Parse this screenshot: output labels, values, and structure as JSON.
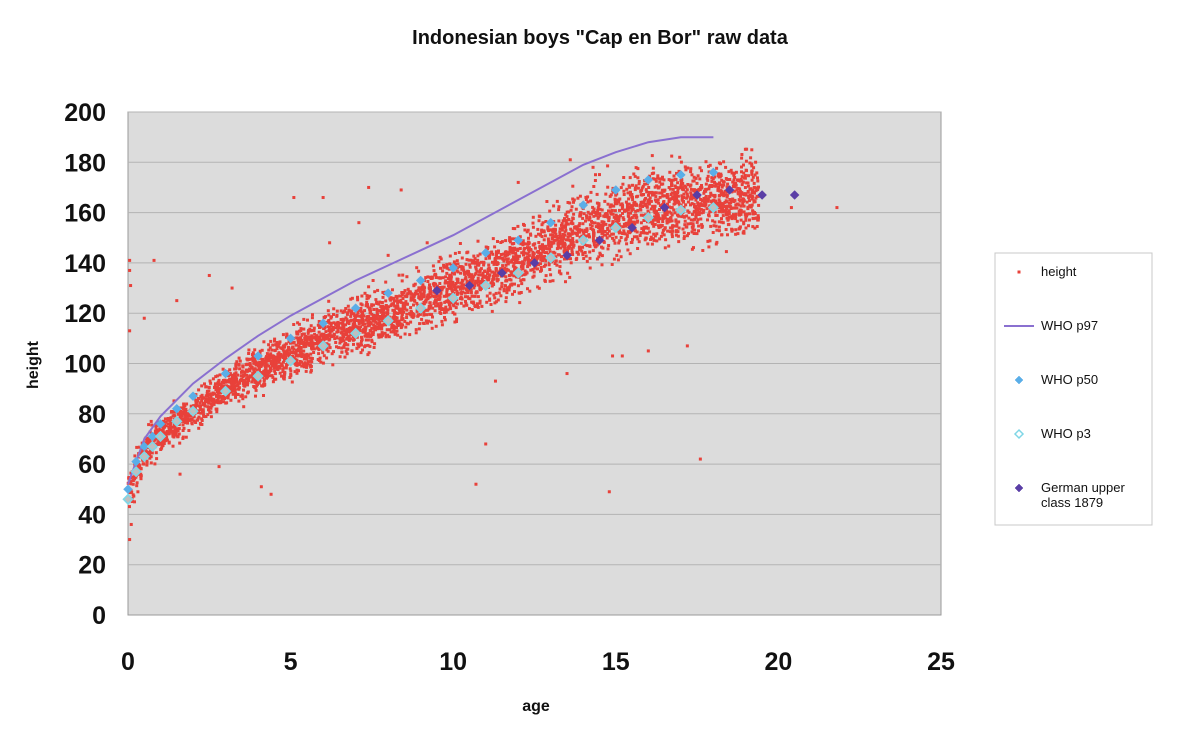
{
  "chart_data": {
    "type": "scatter",
    "title": "Indonesian boys \"Cap en Bor\" raw data",
    "xlabel": "age",
    "ylabel": "height",
    "xlim": [
      0,
      25
    ],
    "ylim": [
      0,
      200
    ],
    "x_ticks": [
      "0",
      "5",
      "10",
      "15",
      "20",
      "25"
    ],
    "y_ticks": [
      "0",
      "20",
      "40",
      "60",
      "80",
      "100",
      "120",
      "140",
      "160",
      "180",
      "200"
    ],
    "grid": true,
    "legend_placement": "right",
    "plot_background": "#dcdcdc",
    "series": [
      {
        "name": "height",
        "kind": "scatter-dense",
        "color": "#e8413a",
        "marker": "dot",
        "trend": [
          [
            0.0,
            50
          ],
          [
            0.5,
            64
          ],
          [
            1,
            71
          ],
          [
            2,
            81
          ],
          [
            3,
            90
          ],
          [
            4,
            97
          ],
          [
            5,
            104
          ],
          [
            6,
            110
          ],
          [
            7,
            115
          ],
          [
            8,
            120
          ],
          [
            9,
            125
          ],
          [
            10,
            130
          ],
          [
            11,
            135
          ],
          [
            12,
            141
          ],
          [
            13,
            147
          ],
          [
            14,
            153
          ],
          [
            15,
            158
          ],
          [
            16,
            162
          ],
          [
            17,
            164
          ],
          [
            18,
            165
          ],
          [
            19,
            166
          ]
        ],
        "points": [
          [
            0.05,
            141
          ],
          [
            0.05,
            137
          ],
          [
            0.08,
            131
          ],
          [
            0.05,
            113
          ],
          [
            0.2,
            45
          ],
          [
            0.1,
            36
          ],
          [
            0.05,
            30
          ],
          [
            0.5,
            118
          ],
          [
            0.8,
            141
          ],
          [
            1.5,
            125
          ],
          [
            2.5,
            135
          ],
          [
            3.2,
            130
          ],
          [
            4.4,
            48
          ],
          [
            4.1,
            51
          ],
          [
            5.1,
            166
          ],
          [
            6.0,
            166
          ],
          [
            7.4,
            170
          ],
          [
            8.0,
            143
          ],
          [
            8.4,
            169
          ],
          [
            10.7,
            52
          ],
          [
            11.0,
            68
          ],
          [
            11.3,
            93
          ],
          [
            14.8,
            49
          ],
          [
            14.9,
            103
          ],
          [
            15.2,
            103
          ],
          [
            16.0,
            105
          ],
          [
            17.2,
            107
          ],
          [
            17.6,
            62
          ],
          [
            21.8,
            162
          ],
          [
            13.6,
            181
          ],
          [
            14.3,
            178
          ],
          [
            12.0,
            172
          ],
          [
            20.4,
            162
          ],
          [
            19.0,
            158
          ],
          [
            9.2,
            148
          ],
          [
            7.1,
            156
          ],
          [
            6.2,
            148
          ],
          [
            13.5,
            96
          ],
          [
            2.8,
            59
          ],
          [
            1.6,
            56
          ]
        ]
      },
      {
        "name": "WHO p97",
        "kind": "line",
        "color": "#8a70d0",
        "points": [
          [
            0,
            52
          ],
          [
            0.5,
            70
          ],
          [
            1,
            79
          ],
          [
            2,
            92
          ],
          [
            3,
            102
          ],
          [
            4,
            111
          ],
          [
            5,
            119
          ],
          [
            6,
            126
          ],
          [
            7,
            133
          ],
          [
            8,
            139
          ],
          [
            9,
            145
          ],
          [
            10,
            151
          ],
          [
            11,
            158
          ],
          [
            12,
            165
          ],
          [
            13,
            172
          ],
          [
            14,
            179
          ],
          [
            15,
            184
          ],
          [
            16,
            188
          ],
          [
            17,
            190
          ],
          [
            18,
            190
          ]
        ]
      },
      {
        "name": "WHO p50",
        "kind": "marker",
        "color": "#5aaee8",
        "marker": "diamond",
        "points": [
          [
            0,
            50
          ],
          [
            0.25,
            61
          ],
          [
            0.5,
            67
          ],
          [
            0.75,
            71
          ],
          [
            1,
            76
          ],
          [
            1.5,
            82
          ],
          [
            2,
            87
          ],
          [
            3,
            96
          ],
          [
            4,
            103
          ],
          [
            5,
            110
          ],
          [
            6,
            116
          ],
          [
            7,
            122
          ],
          [
            8,
            128
          ],
          [
            9,
            133
          ],
          [
            10,
            138
          ],
          [
            11,
            144
          ],
          [
            12,
            149
          ],
          [
            13,
            156
          ],
          [
            14,
            163
          ],
          [
            15,
            169
          ],
          [
            16,
            173
          ],
          [
            17,
            175
          ],
          [
            18,
            176
          ]
        ]
      },
      {
        "name": "WHO p3",
        "kind": "marker",
        "color": "#7fd6e6",
        "marker": "diamond-open",
        "points": [
          [
            0,
            46
          ],
          [
            0.25,
            57
          ],
          [
            0.5,
            63
          ],
          [
            0.75,
            67
          ],
          [
            1,
            71
          ],
          [
            1.5,
            77
          ],
          [
            2,
            81
          ],
          [
            3,
            89
          ],
          [
            4,
            95
          ],
          [
            5,
            101
          ],
          [
            6,
            107
          ],
          [
            7,
            112
          ],
          [
            8,
            117
          ],
          [
            9,
            122
          ],
          [
            10,
            126
          ],
          [
            11,
            131
          ],
          [
            12,
            136
          ],
          [
            13,
            142
          ],
          [
            14,
            149
          ],
          [
            15,
            154
          ],
          [
            16,
            158
          ],
          [
            17,
            161
          ],
          [
            18,
            162
          ]
        ]
      },
      {
        "name": "German upper\nclass 1879",
        "kind": "marker",
        "color": "#5a3ea6",
        "marker": "diamond",
        "points": [
          [
            9.5,
            129
          ],
          [
            10.5,
            131
          ],
          [
            11.5,
            136
          ],
          [
            12.5,
            140
          ],
          [
            13.5,
            143
          ],
          [
            14.5,
            149
          ],
          [
            15.5,
            154
          ],
          [
            16.5,
            162
          ],
          [
            17.5,
            167
          ],
          [
            18.5,
            169
          ],
          [
            19.5,
            167
          ],
          [
            20.5,
            167
          ]
        ]
      }
    ]
  }
}
